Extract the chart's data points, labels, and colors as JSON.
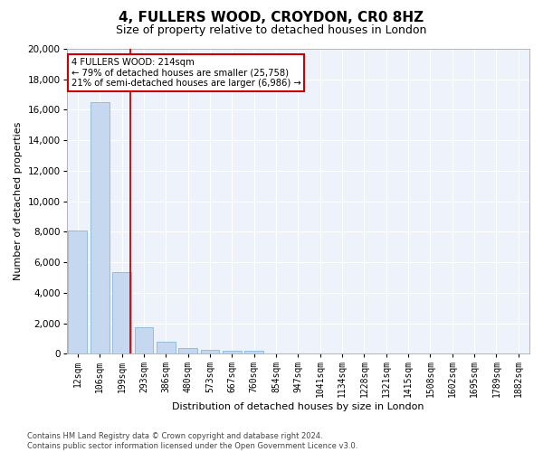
{
  "title": "4, FULLERS WOOD, CROYDON, CR0 8HZ",
  "subtitle": "Size of property relative to detached houses in London",
  "xlabel": "Distribution of detached houses by size in London",
  "ylabel": "Number of detached properties",
  "categories": [
    "12sqm",
    "106sqm",
    "199sqm",
    "293sqm",
    "386sqm",
    "480sqm",
    "573sqm",
    "667sqm",
    "760sqm",
    "854sqm",
    "947sqm",
    "1041sqm",
    "1134sqm",
    "1228sqm",
    "1321sqm",
    "1415sqm",
    "1508sqm",
    "1602sqm",
    "1695sqm",
    "1789sqm",
    "1882sqm"
  ],
  "values": [
    8100,
    16500,
    5350,
    1750,
    780,
    360,
    280,
    220,
    200,
    0,
    0,
    0,
    0,
    0,
    0,
    0,
    0,
    0,
    0,
    0,
    0
  ],
  "bar_color": "#c5d8f0",
  "bar_edge_color": "#7aadd4",
  "vline_color": "#cc0000",
  "annotation_text": "4 FULLERS WOOD: 214sqm\n← 79% of detached houses are smaller (25,758)\n21% of semi-detached houses are larger (6,986) →",
  "annotation_box_color": "#ffffff",
  "annotation_box_edgecolor": "#cc0000",
  "ylim": [
    0,
    20000
  ],
  "yticks": [
    0,
    2000,
    4000,
    6000,
    8000,
    10000,
    12000,
    14000,
    16000,
    18000,
    20000
  ],
  "footer_line1": "Contains HM Land Registry data © Crown copyright and database right 2024.",
  "footer_line2": "Contains public sector information licensed under the Open Government Licence v3.0.",
  "background_color": "#eef2fb",
  "fig_background_color": "#ffffff",
  "grid_color": "#ffffff",
  "title_fontsize": 11,
  "subtitle_fontsize": 9,
  "axis_label_fontsize": 8,
  "tick_fontsize": 7,
  "footer_fontsize": 6
}
